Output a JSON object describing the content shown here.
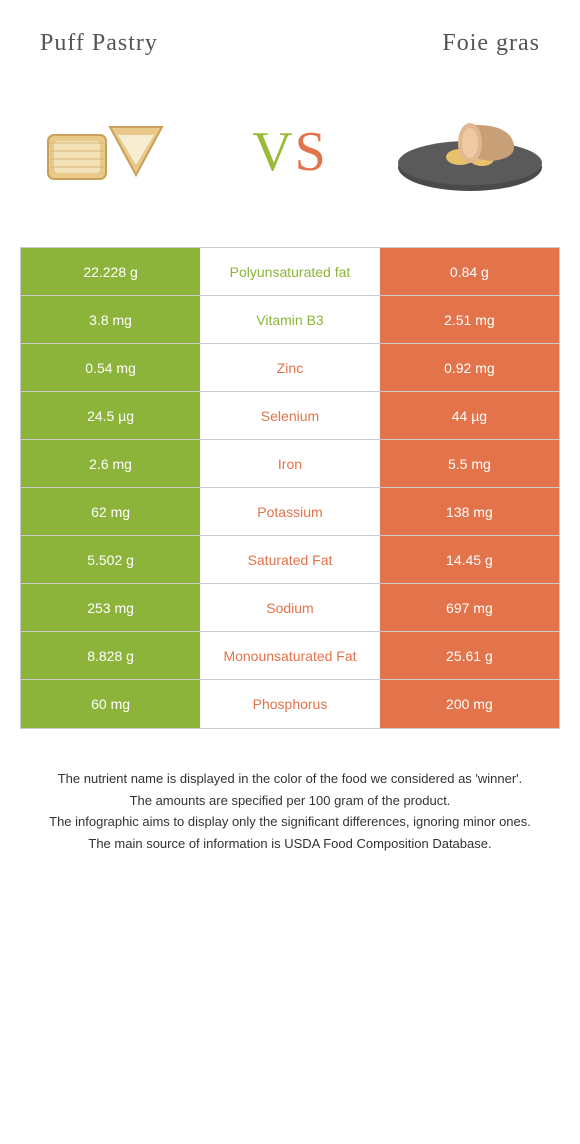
{
  "left_food": "Puff Pastry",
  "right_food": "Foie gras",
  "vs_v": "V",
  "vs_s": "S",
  "colors": {
    "left": "#8db43a",
    "right": "#e2734a",
    "border": "#cccccc",
    "text": "#333333"
  },
  "rows": [
    {
      "left": "22.228 g",
      "mid": "Polyunsaturated fat",
      "right": "0.84 g",
      "winner": "left"
    },
    {
      "left": "3.8 mg",
      "mid": "Vitamin B3",
      "right": "2.51 mg",
      "winner": "left"
    },
    {
      "left": "0.54 mg",
      "mid": "Zinc",
      "right": "0.92 mg",
      "winner": "right"
    },
    {
      "left": "24.5 µg",
      "mid": "Selenium",
      "right": "44 µg",
      "winner": "right"
    },
    {
      "left": "2.6 mg",
      "mid": "Iron",
      "right": "5.5 mg",
      "winner": "right"
    },
    {
      "left": "62 mg",
      "mid": "Potassium",
      "right": "138 mg",
      "winner": "right"
    },
    {
      "left": "5.502 g",
      "mid": "Saturated Fat",
      "right": "14.45 g",
      "winner": "right"
    },
    {
      "left": "253 mg",
      "mid": "Sodium",
      "right": "697 mg",
      "winner": "right"
    },
    {
      "left": "8.828 g",
      "mid": "Monounsaturated Fat",
      "right": "25.61 g",
      "winner": "right"
    },
    {
      "left": "60 mg",
      "mid": "Phosphorus",
      "right": "200 mg",
      "winner": "right"
    }
  ],
  "footer": [
    "The nutrient name is displayed in the color of the food we considered as 'winner'.",
    "The amounts are specified per 100 gram of the product.",
    "The infographic aims to display only the significant differences, ignoring minor ones.",
    "The main source of information is USDA Food Composition Database."
  ]
}
